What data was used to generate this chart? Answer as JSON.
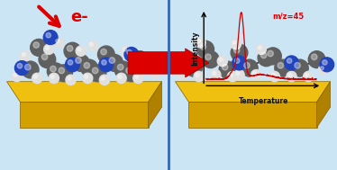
{
  "bg_color": "#cce5f5",
  "divider_color": "#3366bb",
  "arrow_color": "#dd0000",
  "electron_text": "e-",
  "electron_color": "#dd0000",
  "mz_label": "m/z=45",
  "mz_color": "#dd0000",
  "intensity_label": "Intensity",
  "temperature_label": "Temperature",
  "axis_color": "#111111",
  "curve_color": "#cc0000",
  "gold_top": "#f0c010",
  "gold_front": "#d4a000",
  "gold_right": "#b08000",
  "ball_dark": "#606060",
  "ball_white": "#e0e0e0",
  "ball_blue": "#2244bb",
  "figsize": [
    3.74,
    1.89
  ],
  "dpi": 100
}
